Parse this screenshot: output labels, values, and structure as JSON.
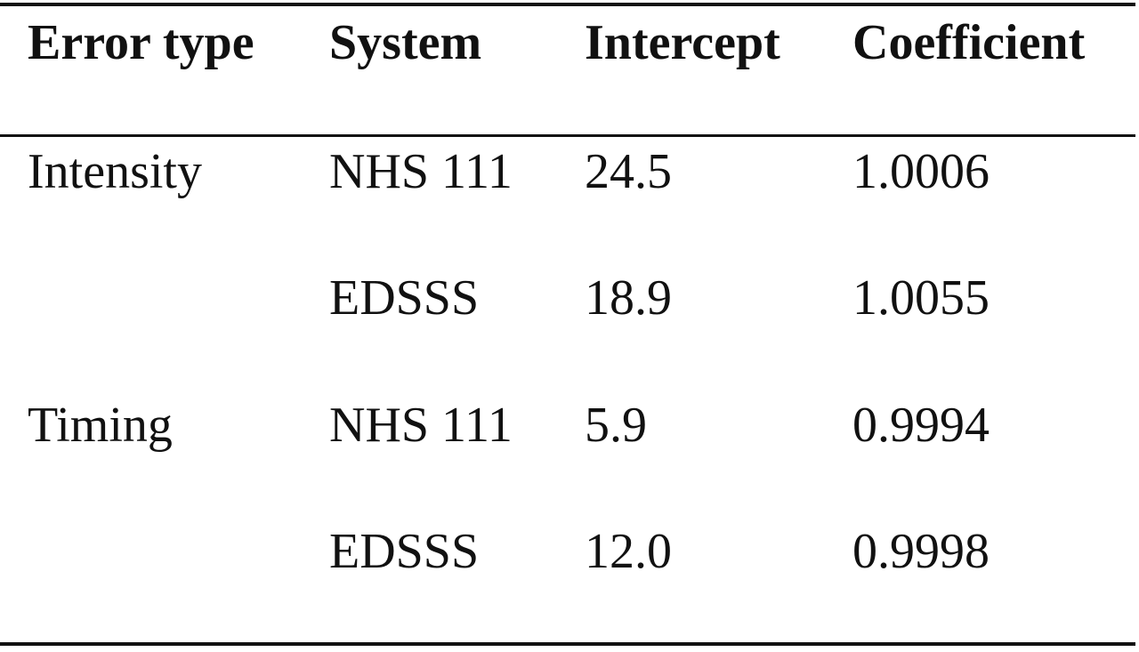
{
  "table": {
    "headers": [
      "Error type",
      "System",
      "Intercept",
      "Coefficient"
    ],
    "rows": [
      {
        "error_type": "Intensity",
        "system": "NHS 111",
        "intercept": "24.5",
        "coefficient": "1.0006"
      },
      {
        "error_type": "",
        "system": "EDSSS",
        "intercept": "18.9",
        "coefficient": "1.0055"
      },
      {
        "error_type": "Timing",
        "system": "NHS 111",
        "intercept": "5.9",
        "coefficient": "0.9994"
      },
      {
        "error_type": "",
        "system": "EDSSS",
        "intercept": "12.0",
        "coefficient": "0.9998"
      }
    ]
  }
}
